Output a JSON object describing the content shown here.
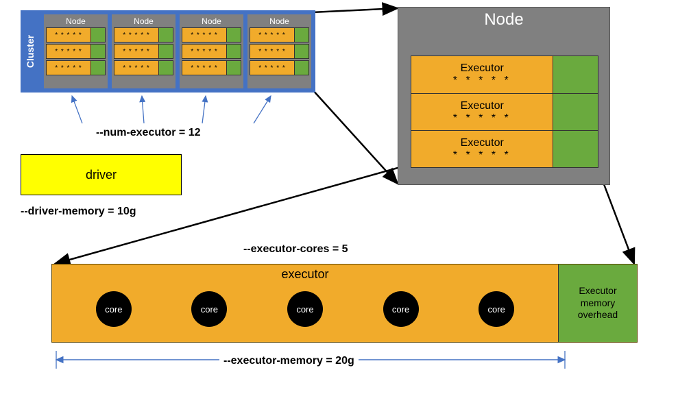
{
  "colors": {
    "cluster_bg": "#4472c4",
    "node_bg": "#808080",
    "executor_bg": "#f1ab2b",
    "overhead_bg": "#6aaa3e",
    "driver_bg": "#ffff00",
    "core_bg": "#000000",
    "arrow_blue": "#4472c4",
    "arrow_black": "#000000",
    "text_white": "#ffffff",
    "text_black": "#000000"
  },
  "cluster": {
    "label": "Cluster",
    "nodes_count": 4,
    "node_label": "Node",
    "executors_per_node": 3,
    "stars": "* * * * *"
  },
  "labels": {
    "num_executor": "--num-executor = 12",
    "driver": "driver",
    "driver_memory": "--driver-memory = 10g",
    "executor_cores": "--executor-cores = 5",
    "executor_title": "executor",
    "core": "core",
    "overhead": "Executor\nmemory\noverhead",
    "executor_memory": "--executor-memory = 20g"
  },
  "big_node": {
    "title": "Node",
    "executor_label": "Executor",
    "stars": "*  *  *  *  *",
    "rows": 3
  },
  "executor_bar": {
    "cores": 5
  }
}
